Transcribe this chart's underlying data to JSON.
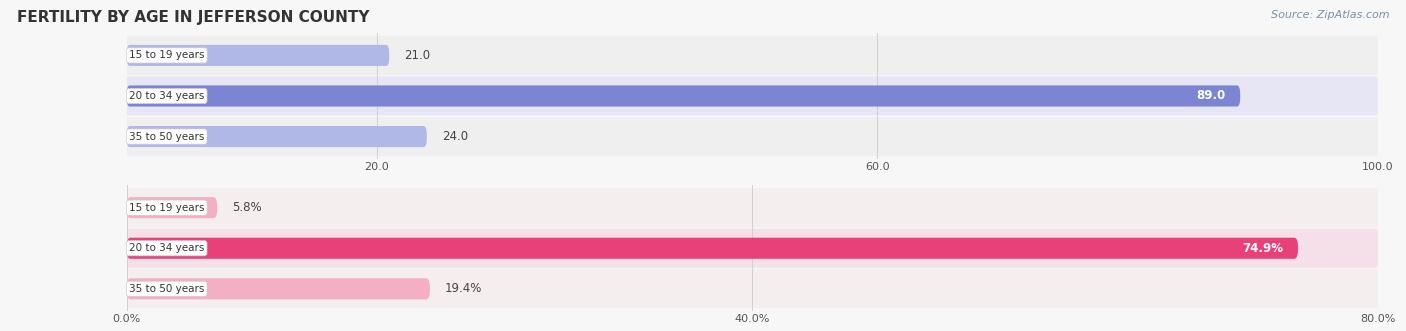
{
  "title": "FERTILITY BY AGE IN JEFFERSON COUNTY",
  "source": "Source: ZipAtlas.com",
  "top_group": {
    "categories": [
      "15 to 19 years",
      "20 to 34 years",
      "35 to 50 years"
    ],
    "values": [
      21.0,
      89.0,
      24.0
    ],
    "xlim": [
      0,
      100
    ],
    "xticks": [
      20.0,
      60.0,
      100.0
    ],
    "xtick_labels": [
      "20.0",
      "60.0",
      "100.0"
    ],
    "bar_colors": [
      "#b0b8e8",
      "#7b85d4",
      "#b0b8e8"
    ],
    "label_inside": [
      false,
      true,
      false
    ],
    "value_labels": [
      "21.0",
      "89.0",
      "24.0"
    ],
    "row_bg": [
      "#efefef",
      "#e6e6f5",
      "#efefef"
    ]
  },
  "bottom_group": {
    "categories": [
      "15 to 19 years",
      "20 to 34 years",
      "35 to 50 years"
    ],
    "values": [
      5.8,
      74.9,
      19.4
    ],
    "xlim": [
      0,
      80
    ],
    "xticks": [
      0.0,
      40.0,
      80.0
    ],
    "xtick_labels": [
      "0.0%",
      "40.0%",
      "80.0%"
    ],
    "bar_colors": [
      "#f4afc5",
      "#e8417a",
      "#f4afc5"
    ],
    "label_inside": [
      false,
      true,
      false
    ],
    "value_labels": [
      "5.8%",
      "74.9%",
      "19.4%"
    ],
    "row_bg": [
      "#f5eeee",
      "#f5e0ea",
      "#f5eeee"
    ]
  },
  "category_label_color": "#333333",
  "title_color": "#333333",
  "source_color": "#7a8fa6",
  "bar_height": 0.52,
  "fig_bg": "#f7f7f7",
  "row_bg_light": "#eeeeee",
  "grid_color": "#d0d0d0"
}
